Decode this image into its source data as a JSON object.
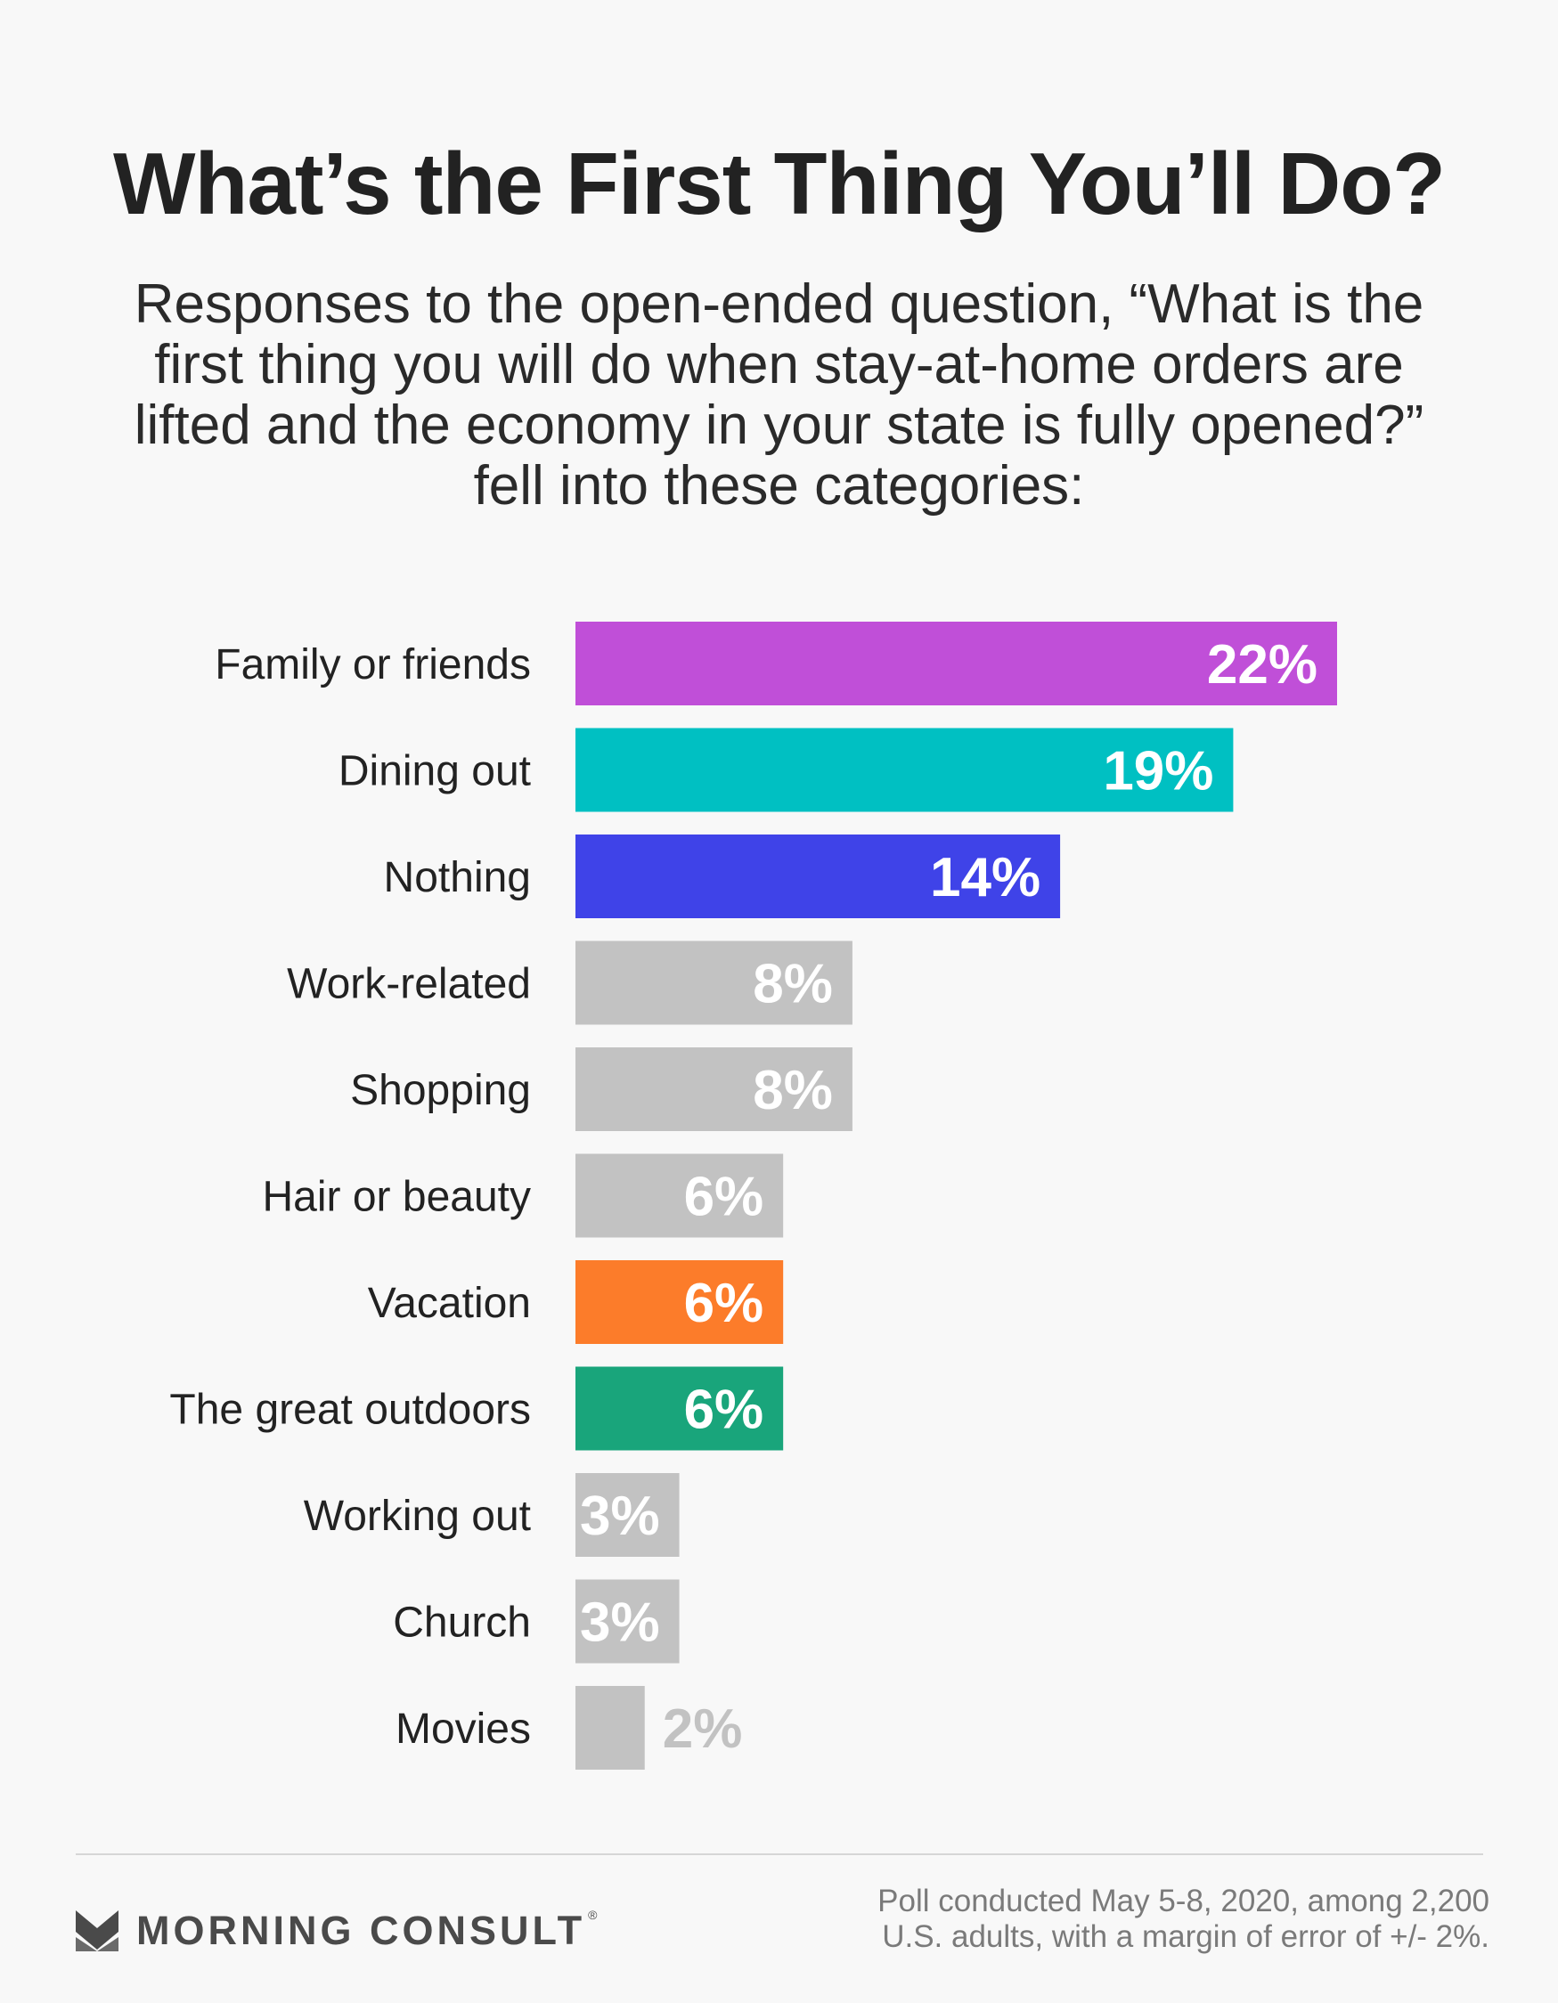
{
  "title": "What’s the First Thing You’ll Do?",
  "subtitle": "Responses to the open-ended question, “What is the first thing you will do when stay-at-home orders are lifted and the economy in your state is fully opened?” fell into these categories:",
  "chart_data": {
    "type": "bar",
    "orientation": "horizontal",
    "title": "",
    "xlabel": "",
    "ylabel": "",
    "xlim": [
      0,
      22
    ],
    "grid": false,
    "categories": [
      "Family or friends",
      "Dining out",
      "Nothing",
      "Work-related",
      "Shopping",
      "Hair or beauty",
      "Vacation",
      "The great outdoors",
      "Working out",
      "Church",
      "Movies"
    ],
    "values": [
      22,
      19,
      14,
      8,
      8,
      6,
      6,
      6,
      3,
      3,
      2
    ],
    "value_labels": [
      "22%",
      "19%",
      "14%",
      "8%",
      "8%",
      "6%",
      "6%",
      "6%",
      "3%",
      "3%",
      "2%"
    ],
    "colors": [
      "#c04fd8",
      "#00c0c2",
      "#3f43e8",
      "#c2c2c2",
      "#c2c2c2",
      "#c2c2c2",
      "#fc7c2a",
      "#19a57b",
      "#c2c2c2",
      "#c2c2c2",
      "#c2c2c2"
    ]
  },
  "footer": {
    "brand": "MORNING CONSULT",
    "brand_mark": "®",
    "source_line1": "Poll conducted May 5-8, 2020, among 2,200",
    "source_line2": "U.S. adults, with a margin of error of +/- 2%."
  }
}
